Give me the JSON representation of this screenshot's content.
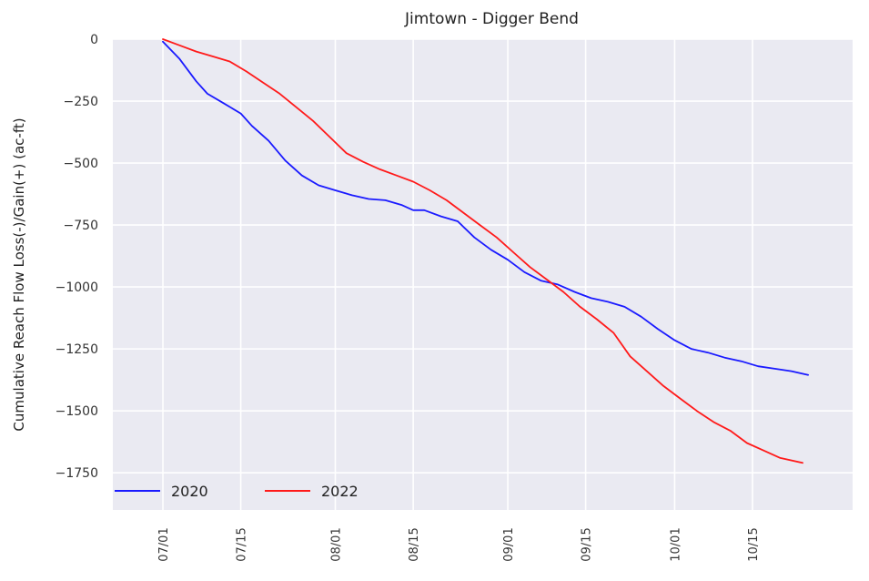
{
  "chart_data": {
    "type": "line",
    "title": "Jimtown - Digger Bend",
    "xlabel": "",
    "ylabel": "Cumulative Reach Flow Loss(-)/Gain(+) (ac-ft)",
    "x_ticks": [
      "07/01",
      "07/15",
      "08/01",
      "08/15",
      "09/01",
      "09/15",
      "10/01",
      "10/15"
    ],
    "y_ticks": [
      0,
      -250,
      -500,
      -750,
      -1000,
      -1250,
      -1500,
      -1750
    ],
    "ylim": [
      -1900,
      0
    ],
    "xlim": [
      "06/22",
      "11/02"
    ],
    "grid": true,
    "legend_position": "bottom-left",
    "series": [
      {
        "name": "2020",
        "color": "#1a1aff",
        "points": [
          [
            "07/01",
            -10
          ],
          [
            "07/04",
            -80
          ],
          [
            "07/07",
            -170
          ],
          [
            "07/09",
            -220
          ],
          [
            "07/12",
            -260
          ],
          [
            "07/15",
            -300
          ],
          [
            "07/17",
            -350
          ],
          [
            "07/20",
            -410
          ],
          [
            "07/23",
            -490
          ],
          [
            "07/26",
            -550
          ],
          [
            "07/29",
            -590
          ],
          [
            "08/01",
            -610
          ],
          [
            "08/04",
            -630
          ],
          [
            "08/07",
            -645
          ],
          [
            "08/10",
            -650
          ],
          [
            "08/13",
            -670
          ],
          [
            "08/15",
            -690
          ],
          [
            "08/17",
            -690
          ],
          [
            "08/20",
            -715
          ],
          [
            "08/23",
            -735
          ],
          [
            "08/26",
            -800
          ],
          [
            "08/29",
            -850
          ],
          [
            "09/01",
            -890
          ],
          [
            "09/04",
            -940
          ],
          [
            "09/07",
            -975
          ],
          [
            "09/10",
            -990
          ],
          [
            "09/13",
            -1020
          ],
          [
            "09/16",
            -1045
          ],
          [
            "09/19",
            -1060
          ],
          [
            "09/22",
            -1080
          ],
          [
            "09/25",
            -1120
          ],
          [
            "09/28",
            -1170
          ],
          [
            "10/01",
            -1215
          ],
          [
            "10/04",
            -1250
          ],
          [
            "10/07",
            -1265
          ],
          [
            "10/10",
            -1285
          ],
          [
            "10/13",
            -1300
          ],
          [
            "10/16",
            -1320
          ],
          [
            "10/19",
            -1330
          ],
          [
            "10/22",
            -1340
          ],
          [
            "10/25",
            -1355
          ]
        ]
      },
      {
        "name": "2022",
        "color": "#ff1a1a",
        "points": [
          [
            "07/01",
            0
          ],
          [
            "07/04",
            -25
          ],
          [
            "07/07",
            -50
          ],
          [
            "07/10",
            -70
          ],
          [
            "07/13",
            -90
          ],
          [
            "07/16",
            -130
          ],
          [
            "07/19",
            -175
          ],
          [
            "07/22",
            -220
          ],
          [
            "07/25",
            -275
          ],
          [
            "07/28",
            -330
          ],
          [
            "07/31",
            -395
          ],
          [
            "08/03",
            -460
          ],
          [
            "08/06",
            -495
          ],
          [
            "08/09",
            -525
          ],
          [
            "08/12",
            -550
          ],
          [
            "08/15",
            -575
          ],
          [
            "08/18",
            -610
          ],
          [
            "08/21",
            -650
          ],
          [
            "08/24",
            -700
          ],
          [
            "08/27",
            -750
          ],
          [
            "08/30",
            -800
          ],
          [
            "09/02",
            -860
          ],
          [
            "09/05",
            -920
          ],
          [
            "09/08",
            -970
          ],
          [
            "09/11",
            -1020
          ],
          [
            "09/14",
            -1080
          ],
          [
            "09/17",
            -1130
          ],
          [
            "09/20",
            -1185
          ],
          [
            "09/23",
            -1280
          ],
          [
            "09/26",
            -1340
          ],
          [
            "09/29",
            -1400
          ],
          [
            "10/02",
            -1450
          ],
          [
            "10/05",
            -1500
          ],
          [
            "10/08",
            -1545
          ],
          [
            "10/11",
            -1580
          ],
          [
            "10/14",
            -1630
          ],
          [
            "10/17",
            -1660
          ],
          [
            "10/20",
            -1690
          ],
          [
            "10/24",
            -1710
          ]
        ]
      }
    ]
  }
}
